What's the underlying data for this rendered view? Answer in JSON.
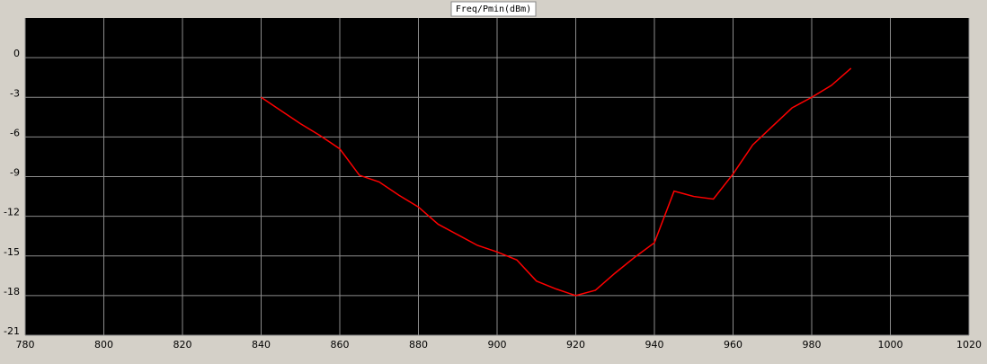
{
  "chart_data": {
    "type": "line",
    "title": "Freq/Pmin(dBm)",
    "x": [
      840,
      845,
      850,
      855,
      860,
      865,
      870,
      875,
      880,
      885,
      890,
      895,
      900,
      905,
      910,
      915,
      920,
      925,
      930,
      935,
      940,
      945,
      950,
      955,
      960,
      965,
      970,
      975,
      980,
      985,
      990
    ],
    "series": [
      {
        "color": "#ff0000",
        "values": [
          -3.0,
          -4.0,
          -5.0,
          -5.9,
          -6.9,
          -8.9,
          -9.4,
          -10.4,
          -11.3,
          -12.6,
          -13.4,
          -14.2,
          -14.7,
          -15.3,
          -16.9,
          -17.5,
          -18.0,
          -17.6,
          -16.3,
          -15.1,
          -14.0,
          -10.1,
          -10.5,
          -10.7,
          -8.8,
          -6.6,
          -5.2,
          -3.8,
          -3.0,
          -2.1,
          -0.8
        ]
      }
    ],
    "xlim": [
      780,
      1020
    ],
    "xticks": [
      780,
      800,
      820,
      840,
      860,
      880,
      900,
      920,
      940,
      960,
      980,
      1000,
      1020
    ],
    "ylim": [
      -21,
      3
    ],
    "yticks": [
      -21,
      -18,
      -15,
      -12,
      -9,
      -6,
      -3,
      0
    ],
    "grid": true
  }
}
